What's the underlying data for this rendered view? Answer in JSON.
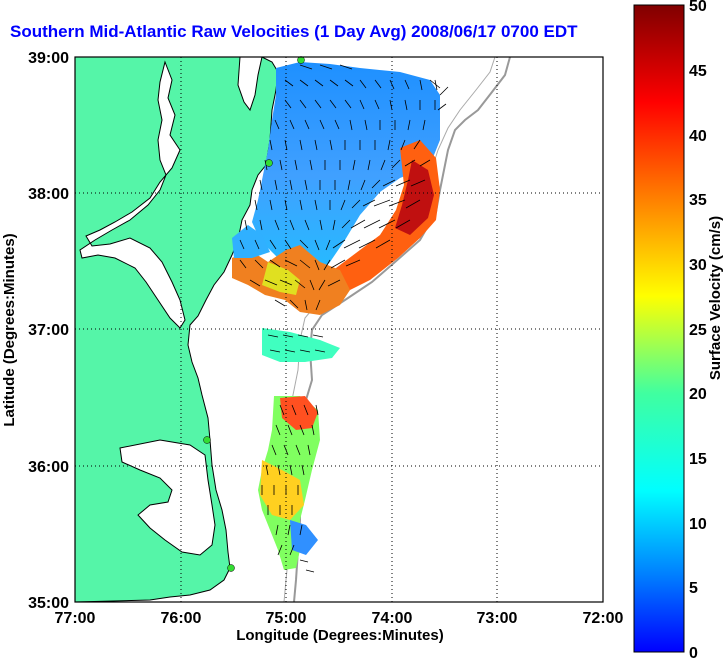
{
  "title": "Southern Mid-Atlantic Raw Velocities (1 Day Avg) 2008/06/17 0700 EDT",
  "axes": {
    "xlabel": "Longitude (Degrees:Minutes)",
    "ylabel": "Latitude (Degrees:Minutes)",
    "xticks": [
      "77:00",
      "76:00",
      "75:00",
      "74:00",
      "73:00",
      "72:00"
    ],
    "yticks": [
      "39:00",
      "38:00",
      "37:00",
      "36:00",
      "35:00"
    ]
  },
  "colorbar": {
    "label": "Surface Velocity (cm/s)",
    "ticks": [
      "50",
      "45",
      "40",
      "35",
      "30",
      "25",
      "20",
      "15",
      "10",
      "5",
      "0"
    ],
    "min": 0,
    "max": 50
  },
  "colors": {
    "land": "#55f5a8",
    "title": "#0000ff",
    "station": "#33dd33"
  }
}
